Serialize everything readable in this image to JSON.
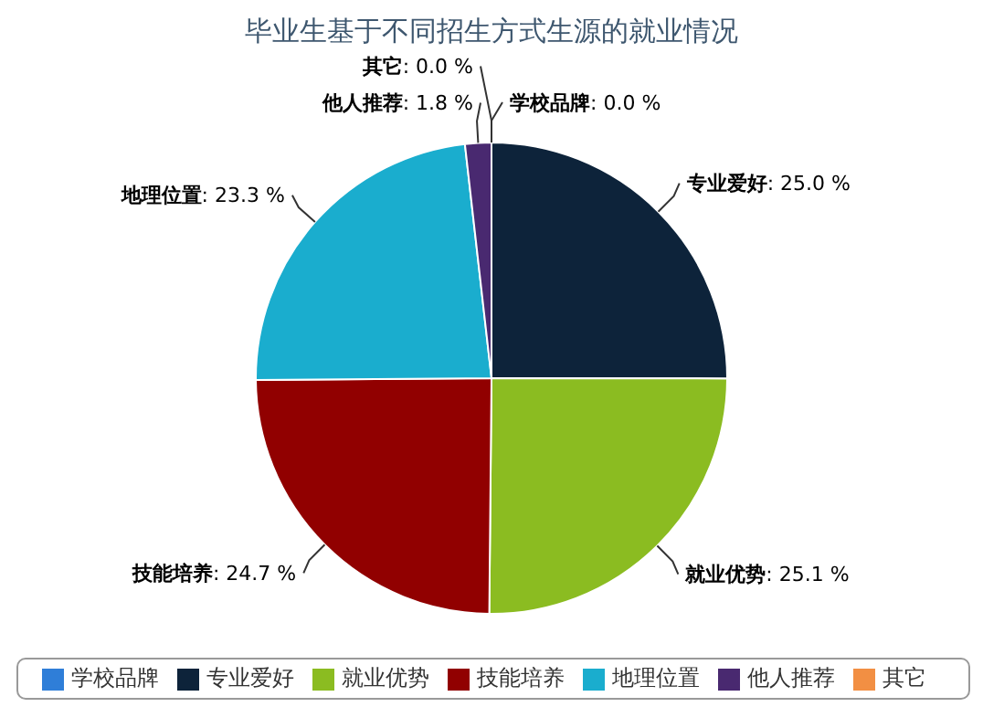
{
  "chart_data": {
    "type": "pie",
    "title": "毕业生基于不同招生方式生源的就业情况",
    "categories": [
      "学校品牌",
      "专业爱好",
      "就业优势",
      "技能培养",
      "地理位置",
      "他人推荐",
      "其它"
    ],
    "values": [
      0.0,
      25.0,
      25.1,
      24.7,
      23.3,
      1.8,
      0.0
    ],
    "colors": [
      "#2f7ed8",
      "#0d233a",
      "#8bbc21",
      "#910000",
      "#1aadce",
      "#492970",
      "#f28f43"
    ],
    "value_labels": [
      ": 0.0 %",
      ": 25.0 %",
      ": 25.1 %",
      ": 24.7 %",
      ": 23.3 %",
      ": 1.8 %",
      ": 0.0 %"
    ],
    "legend": "bottom"
  }
}
